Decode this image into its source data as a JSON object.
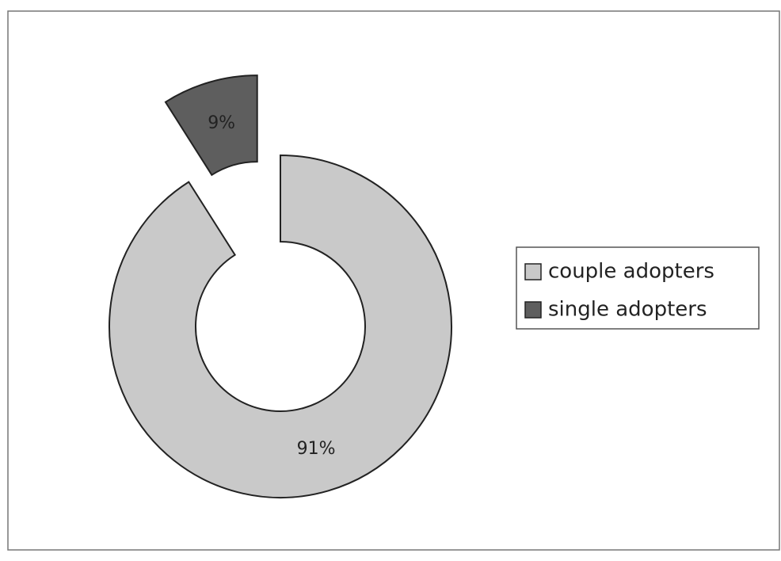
{
  "chart_data": {
    "type": "donut",
    "categories": [
      "couple adopters",
      "single adopters"
    ],
    "values": [
      91,
      9
    ],
    "value_labels": [
      "91%",
      "9%"
    ],
    "colors": [
      "#c9c9c9",
      "#5e5e5e"
    ],
    "exploded": [
      false,
      true
    ],
    "legend": "right"
  }
}
